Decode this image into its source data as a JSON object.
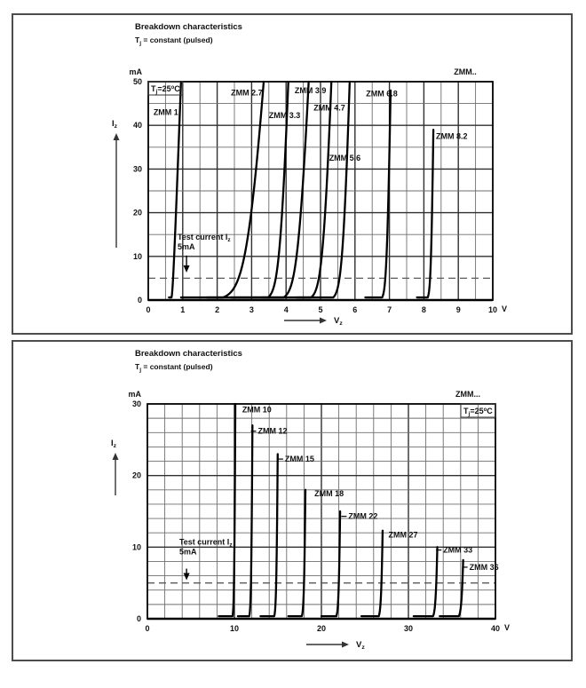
{
  "colors": {
    "curve": "#000000",
    "grid_minor": "#6e6e6e",
    "grid_major": "#2f2f2f",
    "plot_border": "#000000",
    "dashed_line": "#5a5a5a",
    "panel_border": "#4d4d4d",
    "text": "#111111"
  },
  "chart_data": [
    {
      "type": "line",
      "title": "Breakdown characteristics",
      "subtitle_parts": {
        "pre": "T",
        "sub": "j",
        "post": " = constant (pulsed)"
      },
      "family_label": "ZMM..",
      "temp_label_parts": {
        "pre": "T",
        "sub": "j",
        "mid": "=25",
        "sup": "o",
        "post": "C"
      },
      "temp_pos": "top-left",
      "xlabel_parts": {
        "pre": "V",
        "sub": "z"
      },
      "ylabel_parts": {
        "pre": "I",
        "sub": "z"
      },
      "x_unit": "V",
      "y_unit": "mA",
      "xlim": [
        0,
        10
      ],
      "ylim": [
        0,
        50
      ],
      "x_ticks": [
        0,
        1,
        2,
        3,
        4,
        5,
        6,
        7,
        8,
        9,
        10
      ],
      "y_ticks": [
        0,
        10,
        20,
        30,
        40,
        50
      ],
      "x_minor_step": 0.5,
      "x_major_step": 1,
      "y_minor_step": 5,
      "y_major_step": 10,
      "grid": true,
      "legend": "curve labels inside plot",
      "test_current_mA": 5,
      "annotation": {
        "line1_pre": "Test current I",
        "line1_sub": "z",
        "line2": "5mA",
        "text_x": 0.85,
        "text_y": 14.4,
        "arrow_x": 1.11,
        "arrow_from_mA": 10.2,
        "arrow_to_mA": 6.3
      },
      "series": [
        {
          "name": "ZMM 1",
          "vz_at_5mA_V": 0.72,
          "knee_k": 0.012,
          "rz_ohm": 4.5,
          "tail_from_V": 0.6,
          "top_mA": 50,
          "label_x": 0.15,
          "label_y": 43,
          "leader": false
        },
        {
          "name": "ZMM 2.7",
          "vz_at_5mA_V": 2.62,
          "knee_k": 0.2,
          "rz_ohm": 6,
          "tail_from_V": 0.95,
          "top_mA": 50,
          "label_x": 2.4,
          "label_y": 47.5,
          "leader": false
        },
        {
          "name": "ZMM 3.3",
          "vz_at_5mA_V": 3.7,
          "knee_k": 0.1,
          "rz_ohm": 3,
          "tail_from_V": 1.7,
          "top_mA": 50,
          "label_x": 3.5,
          "label_y": 42.3,
          "leader": false
        },
        {
          "name": "ZMM 3.9",
          "vz_at_5mA_V": 4.2,
          "knee_k": 0.12,
          "rz_ohm": 4,
          "tail_from_V": 2.4,
          "top_mA": 50,
          "label_x": 4.25,
          "label_y": 48,
          "leader": false
        },
        {
          "name": "ZMM 4.7",
          "vz_at_5mA_V": 4.95,
          "knee_k": 0.1,
          "rz_ohm": 3,
          "tail_from_V": 3.3,
          "top_mA": 50,
          "label_x": 4.8,
          "label_y": 44,
          "leader": false
        },
        {
          "name": "ZMM 5.6",
          "vz_at_5mA_V": 5.55,
          "knee_k": 0.08,
          "rz_ohm": 2.5,
          "tail_from_V": 4.3,
          "top_mA": 50,
          "label_x": 5.25,
          "label_y": 32.5,
          "leader": false
        },
        {
          "name": "ZMM 6.8",
          "vz_at_5mA_V": 6.88,
          "knee_k": 0.04,
          "rz_ohm": 1.5,
          "tail_from_V": 6.3,
          "top_mA": 48,
          "label_x": 6.32,
          "label_y": 47.3,
          "leader": false
        },
        {
          "name": "ZMM 8.2",
          "vz_at_5mA_V": 8.18,
          "knee_k": 0.03,
          "rz_ohm": 1.0,
          "tail_from_V": 7.8,
          "top_mA": 39,
          "label_x": 8.35,
          "label_y": 37.5,
          "leader": false
        }
      ]
    },
    {
      "type": "line",
      "title": "Breakdown characteristics",
      "subtitle_parts": {
        "pre": "T",
        "sub": "j",
        "post": " = constant (pulsed)"
      },
      "family_label": "ZMM...",
      "temp_label_parts": {
        "pre": "T",
        "sub": "j",
        "mid": "=25",
        "sup": "o",
        "post": "C"
      },
      "temp_pos": "top-right",
      "xlabel_parts": {
        "pre": "V",
        "sub": "z"
      },
      "ylabel_parts": {
        "pre": "I",
        "sub": "z"
      },
      "x_unit": "V",
      "y_unit": "mA",
      "xlim": [
        0,
        40
      ],
      "ylim": [
        0,
        30
      ],
      "x_ticks": [
        0,
        10,
        20,
        30,
        40
      ],
      "y_ticks": [
        0,
        10,
        20,
        30
      ],
      "x_minor_step": 2,
      "x_major_step": 10,
      "y_minor_step": 2,
      "y_major_step": 10,
      "grid": true,
      "legend": "curve labels inside plot",
      "test_current_mA": 5,
      "annotation": {
        "line1_pre": "Test current I",
        "line1_sub": "z",
        "line2": "5mA",
        "text_x": 3.67,
        "text_y": 10.7,
        "arrow_x": 4.5,
        "arrow_from_mA": 7.0,
        "arrow_to_mA": 5.4
      },
      "series": [
        {
          "name": "ZMM 10",
          "vz_at_5mA_V": 9.95,
          "knee_k": 0.06,
          "rz_ohm": 2,
          "tail_from_V": 8.2,
          "top_mA": 30,
          "label_x": 10.9,
          "label_y": 29.2,
          "leader": false
        },
        {
          "name": "ZMM 12",
          "vz_at_5mA_V": 11.9,
          "knee_k": 0.07,
          "rz_ohm": 2.5,
          "tail_from_V": 10.4,
          "top_mA": 27,
          "label_x": 12.7,
          "label_y": 26.2,
          "leader": true
        },
        {
          "name": "ZMM 15",
          "vz_at_5mA_V": 14.8,
          "knee_k": 0.08,
          "rz_ohm": 3,
          "tail_from_V": 13.0,
          "top_mA": 23,
          "label_x": 15.8,
          "label_y": 22.3,
          "leader": true
        },
        {
          "name": "ZMM 18",
          "vz_at_5mA_V": 18.0,
          "knee_k": 0.09,
          "rz_ohm": 3.5,
          "tail_from_V": 16.2,
          "top_mA": 18,
          "label_x": 19.2,
          "label_y": 17.5,
          "leader": false
        },
        {
          "name": "ZMM 22",
          "vz_at_5mA_V": 22.0,
          "knee_k": 0.1,
          "rz_ohm": 4,
          "tail_from_V": 20.0,
          "top_mA": 15,
          "label_x": 23.1,
          "label_y": 14.3,
          "leader": true
        },
        {
          "name": "ZMM 27",
          "vz_at_5mA_V": 26.9,
          "knee_k": 0.11,
          "rz_ohm": 5,
          "tail_from_V": 24.6,
          "top_mA": 12.3,
          "label_x": 27.7,
          "label_y": 11.7,
          "leader": false
        },
        {
          "name": "ZMM 33",
          "vz_at_5mA_V": 33.2,
          "knee_k": 0.13,
          "rz_ohm": 6,
          "tail_from_V": 30.6,
          "top_mA": 10,
          "label_x": 34.0,
          "label_y": 9.6,
          "leader": true
        },
        {
          "name": "ZMM 36",
          "vz_at_5mA_V": 36.2,
          "knee_k": 0.14,
          "rz_ohm": 7,
          "tail_from_V": 33.6,
          "top_mA": 8.2,
          "label_x": 37.0,
          "label_y": 7.2,
          "leader": true
        }
      ]
    }
  ]
}
